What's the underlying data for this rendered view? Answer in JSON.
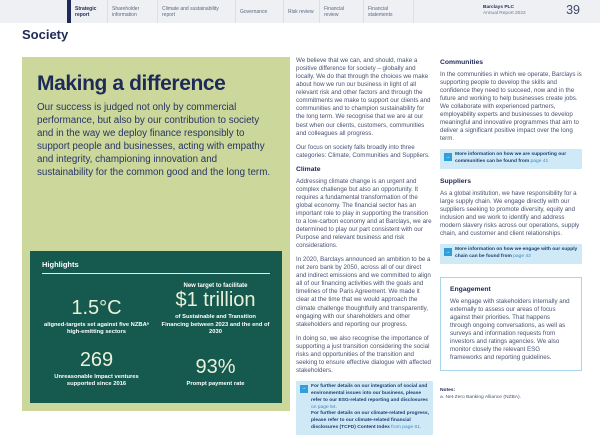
{
  "header": {
    "tabs": [
      {
        "label": "Strategic report",
        "active": true
      },
      {
        "label": "Shareholder information",
        "active": false
      },
      {
        "label": "Climate and sustainability report",
        "active": false
      },
      {
        "label": "Governance",
        "active": false
      },
      {
        "label": "Risk review",
        "active": false
      },
      {
        "label": "Financial review",
        "active": false
      },
      {
        "label": "Financial statements",
        "active": false
      }
    ],
    "brand": "Barclays PLC",
    "brand_sub": "Annual Report 2022",
    "page_number": "39"
  },
  "section_title": "Society",
  "hero": {
    "title": "Making a difference",
    "body": "Our success is judged not only by commercial performance, but also by our contribution to society and in the way we deploy finance responsibly to support people and businesses, acting with empathy and integrity, championing innovation and sustainability for the common good and the long term."
  },
  "highlights": {
    "title": "Highlights",
    "stats": [
      {
        "pre": "",
        "value": "1.5°C",
        "caption": "aligned-targets set against five NZBAᵃ high-emitting sectors"
      },
      {
        "pre": "New target to facilitate",
        "value": "$1 trillion",
        "caption": "of Sustainable and Transition Financing between 2023 and the end of 2030"
      },
      {
        "pre": "",
        "value": "269",
        "caption": "Unreasonable Impact ventures supported since 2016"
      },
      {
        "pre": "",
        "value": "93%",
        "caption": "Prompt payment rate"
      }
    ]
  },
  "col1": {
    "p1": "We believe that we can, and should, make a positive difference for society – globally and locally. We do that through the choices we make about how we run our business in light of all relevant risk and other factors and through the commitments we make to support our clients and communities and to champion sustainability for the long term. We recognise that we are at our best when our clients, customers, communities and colleagues all progress.",
    "p2": "Our focus on society falls broadly into three categories: Climate, Communities and Suppliers.",
    "climate_heading": "Climate",
    "p3": "Addressing climate change is an urgent and complex challenge but also an opportunity. It requires a fundamental transformation of the global economy. The financial sector has an important role to play in supporting the transition to a low-carbon economy and at Barclays, we are determined to play our part consistent with our Purpose and relevant business and risk considerations.",
    "p4": "In 2020, Barclays announced an ambition to be a net zero bank by 2050, across all of our direct and indirect emissions and we committed to align all of our financing activities with the goals and timelines of the Paris Agreement. We made it clear at the time that we would approach the climate challenge thoughtfully and transparently, engaging with our shareholders and other stakeholders and reporting our progress.",
    "p5": "In doing so, we also recognise the importance of supporting a just transition considering the social risks and opportunities of the transition and seeking to ensure effective dialogue with affected stakeholders.",
    "info_box": {
      "line1": "For further details on our integration of social and environmental issues into our business, please refer to our ESG-related reporting and disclosures",
      "line1_ref": "on page 54.",
      "line2": "For further details on our climate-related progress, please refer to our climate-related financial disclosures (TCFD) Content Index",
      "line2_ref": "from page 61."
    }
  },
  "col2": {
    "communities_heading": "Communities",
    "communities_body": "In the communities in which we operate, Barclays is supporting people to develop the skills and confidence they need to succeed, now and in the future and working to help businesses create jobs. We collaborate with experienced partners, employability experts and businesses to develop meaningful and innovative programmes that aim to deliver a significant positive impact over the long term.",
    "communities_ref": {
      "text": "More information on how we are supporting our communities can be found from",
      "page": "page 41"
    },
    "suppliers_heading": "Suppliers",
    "suppliers_body": "As a global institution, we have responsibility for a large supply chain. We engage directly with our suppliers seeking to promote diversity, equity and inclusion and we work to identify and address modern slavery risks across our operations, supply chain, and customer and client relationships.",
    "suppliers_ref": {
      "text": "More information on how we engage with our supply chain can be found from",
      "page": "page 43"
    },
    "engagement": {
      "heading": "Engagement",
      "body": "We engage with stakeholders internally and externally to assess our areas of focus against their priorities. That happens through ongoing conversations, as well as surveys and information requests from investors and ratings agencies. We also monitor closely the relevant ESG frameworks and reporting guidelines."
    },
    "notes": {
      "label": "Notes:",
      "items": [
        "a. Net-Zero Banking Alliance (NZBA)."
      ]
    }
  },
  "icons": {
    "cross_reference": "→"
  },
  "colors": {
    "navy": "#1e2a57",
    "hero_green": "#cbd79b",
    "highlights_teal": "#15594f",
    "ref_box_blue": "#cfe9f7",
    "ref_icon_blue": "#2e9fdb",
    "header_gray": "#eef0f4"
  }
}
